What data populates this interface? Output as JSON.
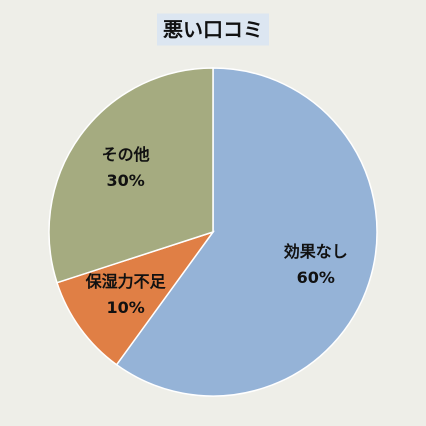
{
  "chart_data": {
    "type": "pie",
    "title": "悪い口コミ",
    "categories": [
      "効果なし",
      "保湿力不足",
      "その他"
    ],
    "values": [
      60,
      10,
      30
    ],
    "value_labels": [
      "60%",
      "10%",
      "30%"
    ],
    "colors": [
      "#95b3d7",
      "#e07f45",
      "#a5ab80"
    ]
  }
}
